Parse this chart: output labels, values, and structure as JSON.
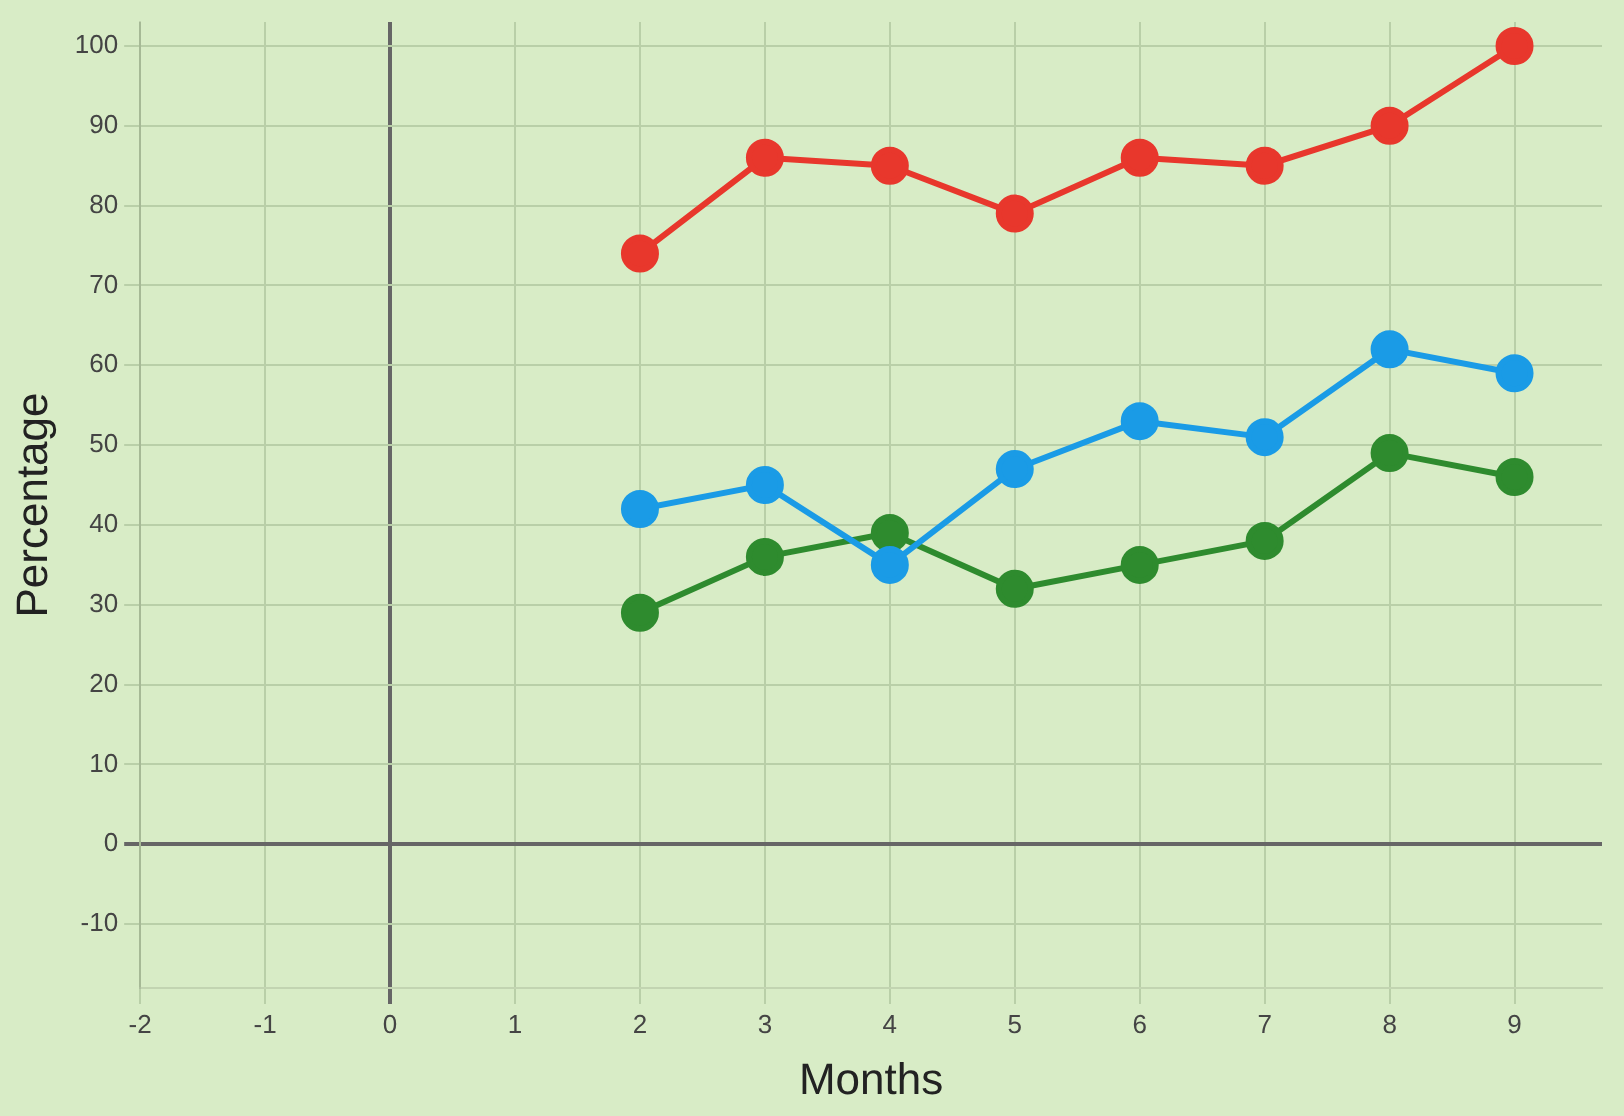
{
  "chart_data": {
    "type": "line",
    "xlabel": "Months",
    "ylabel": "Percentage",
    "x": [
      2,
      3,
      4,
      5,
      6,
      7,
      8,
      9
    ],
    "series": [
      {
        "color": "#e8372c",
        "values": [
          74,
          86,
          85,
          79,
          86,
          85,
          90,
          100
        ]
      },
      {
        "color": "#1a9be6",
        "values": [
          42,
          45,
          35,
          47,
          53,
          51,
          62,
          59
        ]
      },
      {
        "color": "#2e8b2e",
        "values": [
          29,
          36,
          39,
          32,
          35,
          38,
          49,
          46
        ]
      }
    ],
    "xlim": [
      -2,
      9.7
    ],
    "xticks": [
      -2,
      -1,
      0,
      1,
      2,
      3,
      4,
      5,
      6,
      7,
      8,
      9
    ],
    "ylim": [
      -18,
      103
    ],
    "yticks": [
      -10,
      0,
      10,
      20,
      30,
      40,
      50,
      60,
      70,
      80,
      90,
      100
    ],
    "grid": true,
    "legend": false,
    "marker": "circle",
    "line_style": "solid"
  }
}
